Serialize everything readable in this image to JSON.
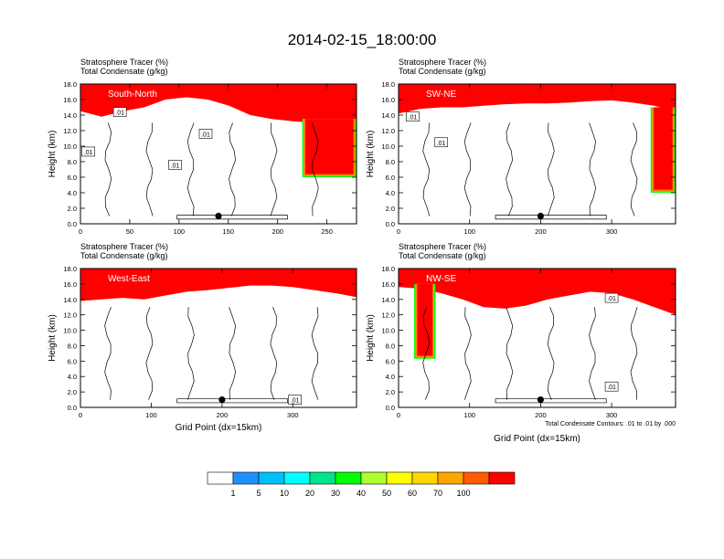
{
  "title": "2014-02-15_18:00:00",
  "colors": {
    "levels": [
      "#ffffff",
      "#1e90ff",
      "#00bfff",
      "#00ffff",
      "#00e58a",
      "#00ff00",
      "#adff2f",
      "#ffff00",
      "#ffd700",
      "#ffa500",
      "#ff5a00",
      "#ff0000"
    ],
    "contour": "#000000"
  },
  "chart_data": [
    {
      "type": "heatmap",
      "title_line1": "Stratosphere Tracer   (%)",
      "title_line2": "Total Condensate   (g/kg)",
      "panel_label": "South-North",
      "ylabel": "Height (km)",
      "xlabel": "",
      "xlim": [
        0,
        280
      ],
      "ylim": [
        0,
        18
      ],
      "xticks": [
        0,
        50,
        100,
        150,
        200,
        250
      ],
      "yticks": [
        "0.0",
        "2.0",
        "4.0",
        "6.0",
        "8.0",
        "10.0",
        "12.0",
        "14.0",
        "16.0",
        "18.0"
      ],
      "tracer_top_km": [
        14.5,
        13.8,
        14.5,
        15.0,
        16.0,
        16.3,
        16.0,
        15.2,
        14.0,
        13.5,
        13.2,
        13.0,
        12.8,
        12.8
      ],
      "marker": {
        "x": 140,
        "y": 1.0
      },
      "contour_labels": [
        {
          "text": ".01",
          "x": 8,
          "y": 9.3
        },
        {
          "text": ".01",
          "x": 40,
          "y": 14.4
        },
        {
          "text": ".01",
          "x": 96,
          "y": 7.6
        },
        {
          "text": ".01",
          "x": 127,
          "y": 11.6
        }
      ],
      "intrusions": [
        {
          "x0": 225,
          "x1": 280,
          "ytop": 13.5,
          "ybot": 6.0
        }
      ]
    },
    {
      "type": "heatmap",
      "title_line1": "Stratosphere Tracer   (%)",
      "title_line2": "Total Condensate   (g/kg)",
      "panel_label": "SW-NE",
      "ylabel": "Height (km)",
      "xlabel": "",
      "xlim": [
        0,
        390
      ],
      "ylim": [
        0,
        18
      ],
      "xticks": [
        0,
        100,
        200,
        300
      ],
      "yticks": [
        "0.0",
        "2.0",
        "4.0",
        "6.0",
        "8.0",
        "10.0",
        "12.0",
        "14.0",
        "16.0",
        "18.0"
      ],
      "tracer_top_km": [
        14.2,
        14.8,
        15.0,
        15.0,
        15.2,
        15.4,
        15.5,
        15.5,
        15.6,
        15.8,
        15.9,
        15.6,
        15.2,
        14.5
      ],
      "marker": {
        "x": 200,
        "y": 1.0
      },
      "contour_labels": [
        {
          "text": ".01",
          "x": 20,
          "y": 13.8
        },
        {
          "text": ".01",
          "x": 60,
          "y": 10.5
        }
      ],
      "intrusions": [
        {
          "x0": 355,
          "x1": 390,
          "ytop": 15.0,
          "ybot": 4.0
        }
      ]
    },
    {
      "type": "heatmap",
      "title_line1": "Stratosphere Tracer   (%)",
      "title_line2": "Total Condensate   (g/kg)",
      "panel_label": "West-East",
      "ylabel": "Height (km)",
      "xlabel": "Grid Point (dx=15km)",
      "xlim": [
        0,
        390
      ],
      "ylim": [
        0,
        18
      ],
      "xticks": [
        0,
        100,
        200,
        300
      ],
      "yticks": [
        "0.0",
        "2.0",
        "4.0",
        "6.0",
        "8.0",
        "10.0",
        "12.0",
        "14.0",
        "16.0",
        "18.0"
      ],
      "tracer_top_km": [
        13.8,
        14.0,
        14.2,
        14.0,
        14.5,
        15.0,
        15.2,
        15.5,
        15.8,
        15.8,
        15.6,
        15.2,
        14.8,
        14.3
      ],
      "marker": {
        "x": 200,
        "y": 1.0
      },
      "contour_labels": [
        {
          "text": ".01",
          "x": 303,
          "y": 1.0
        }
      ],
      "intrusions": []
    },
    {
      "type": "heatmap",
      "title_line1": "Stratosphere Tracer   (%)",
      "title_line2": "Total Condensate   (g/kg)",
      "panel_label": "NW-SE",
      "ylabel": "Height (km)",
      "xlabel": "Grid Point (dx=15km)",
      "xlim": [
        0,
        390
      ],
      "ylim": [
        0,
        18
      ],
      "xticks": [
        0,
        100,
        200,
        300
      ],
      "yticks": [
        "0.0",
        "2.0",
        "4.0",
        "6.0",
        "8.0",
        "10.0",
        "12.0",
        "14.0",
        "16.0",
        "18.0"
      ],
      "tracer_top_km": [
        15.6,
        15.4,
        14.8,
        14.0,
        13.0,
        12.8,
        13.2,
        14.0,
        14.5,
        15.0,
        14.8,
        14.0,
        13.0,
        12.0
      ],
      "marker": {
        "x": 200,
        "y": 1.0
      },
      "contour_labels": [
        {
          "text": ".01",
          "x": 300,
          "y": 14.2
        },
        {
          "text": ".01",
          "x": 300,
          "y": 2.7
        }
      ],
      "intrusions": [
        {
          "x0": 22,
          "x1": 52,
          "ytop": 16.0,
          "ybot": 6.3
        }
      ],
      "footnote": "Total Condensate Contours: .01 to .01 by .000"
    }
  ],
  "colorbar": {
    "labels": [
      "1",
      "5",
      "10",
      "20",
      "30",
      "40",
      "50",
      "60",
      "70",
      "100"
    ]
  }
}
